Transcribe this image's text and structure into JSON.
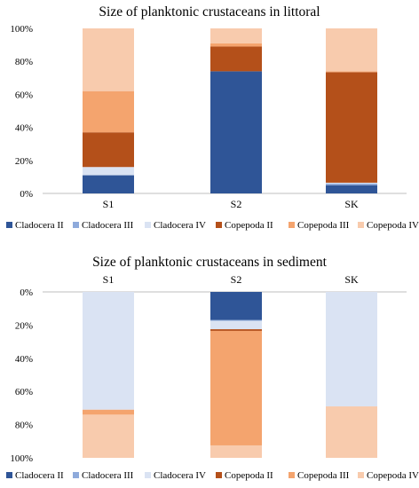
{
  "colors": {
    "Cladocera II": "#2f5597",
    "Cladocera III": "#8eaadb",
    "Cladocera IV": "#dae3f3",
    "Copepoda II": "#b4501a",
    "Copepoda III": "#f4a46e",
    "Copepoda IV": "#f8cbad",
    "axis": "#bfbfbf"
  },
  "chart_data": [
    {
      "type": "bar",
      "stacked": true,
      "percent": true,
      "title": "Size of planktonic crustaceans in littoral",
      "categories": [
        "S1",
        "S2",
        "SK"
      ],
      "yticks": [
        "0%",
        "20%",
        "40%",
        "60%",
        "80%",
        "100%"
      ],
      "ylim": [
        0,
        100
      ],
      "y_direction": "up",
      "category_labels_position": "bottom",
      "legend_position": "bottom",
      "series": [
        {
          "name": "Cladocera II",
          "values": [
            11,
            74,
            5
          ]
        },
        {
          "name": "Cladocera III",
          "values": [
            0,
            0,
            1
          ]
        },
        {
          "name": "Cladocera IV",
          "values": [
            5,
            0,
            0.5
          ]
        },
        {
          "name": "Copepoda II",
          "values": [
            21,
            15,
            67
          ]
        },
        {
          "name": "Copepoda III",
          "values": [
            25,
            2,
            0.5
          ]
        },
        {
          "name": "Copepoda IV",
          "values": [
            38,
            9,
            26
          ]
        }
      ]
    },
    {
      "type": "bar",
      "stacked": true,
      "percent": true,
      "title": "Size of planktonic crustaceans in sediment",
      "categories": [
        "S1",
        "S2",
        "SK"
      ],
      "yticks": [
        "0%",
        "20%",
        "40%",
        "60%",
        "80%",
        "100%"
      ],
      "ylim": [
        0,
        100
      ],
      "y_direction": "down",
      "category_labels_position": "top",
      "legend_position": "bottom",
      "series": [
        {
          "name": "Cladocera II",
          "values": [
            0,
            17,
            0
          ]
        },
        {
          "name": "Cladocera III",
          "values": [
            0,
            0.5,
            0
          ]
        },
        {
          "name": "Cladocera IV",
          "values": [
            71,
            5,
            69
          ]
        },
        {
          "name": "Copepoda II",
          "values": [
            0,
            1,
            0
          ]
        },
        {
          "name": "Copepoda III",
          "values": [
            3,
            69,
            0
          ]
        },
        {
          "name": "Copepoda IV",
          "values": [
            26,
            7.5,
            31
          ]
        }
      ]
    }
  ]
}
